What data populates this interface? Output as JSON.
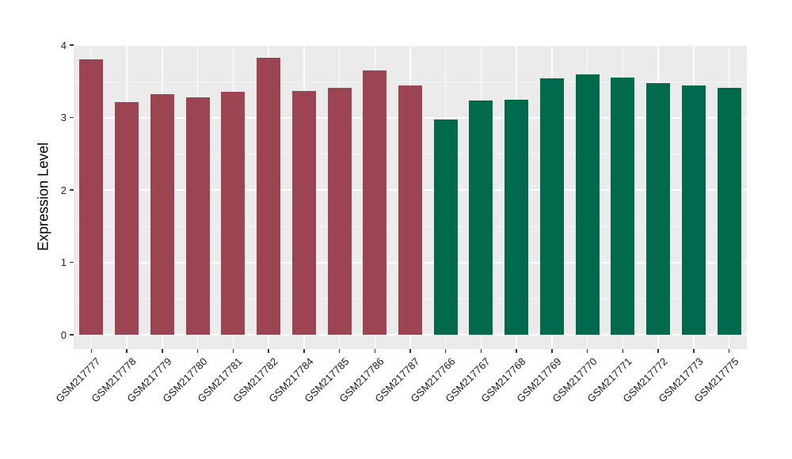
{
  "chart_data": {
    "type": "bar",
    "title": "",
    "xlabel": "",
    "ylabel": "Expression Level",
    "ylim": [
      0,
      4
    ],
    "yticks": [
      0,
      1,
      2,
      3,
      4
    ],
    "minor_grid_interval": 0.5,
    "grid": true,
    "legend": false,
    "colors": {
      "panel_bg": "#EBEBEB",
      "grid_major": "#FFFFFF",
      "grid_minor": "#F6F6F6",
      "axis_text": "#262626",
      "axis_title": "#000000",
      "tick_mark": "#333333",
      "red_group": "#9D4452",
      "green_group": "#016A4D"
    },
    "series": [
      {
        "name": "red-group",
        "color": "#9D4452",
        "categories": [
          "GSM217777",
          "GSM217778",
          "GSM217779",
          "GSM217780",
          "GSM217781",
          "GSM217782",
          "GSM217784",
          "GSM217785",
          "GSM217786",
          "GSM217787"
        ],
        "values": [
          3.8,
          3.21,
          3.32,
          3.28,
          3.35,
          3.83,
          3.37,
          3.41,
          3.65,
          3.44
        ]
      },
      {
        "name": "green-group",
        "color": "#016A4D",
        "categories": [
          "GSM217766",
          "GSM217767",
          "GSM217768",
          "GSM217769",
          "GSM217770",
          "GSM217771",
          "GSM217772",
          "GSM217773",
          "GSM217775"
        ],
        "values": [
          2.97,
          3.23,
          3.25,
          3.54,
          3.6,
          3.55,
          3.48,
          3.44,
          3.41
        ]
      }
    ]
  }
}
